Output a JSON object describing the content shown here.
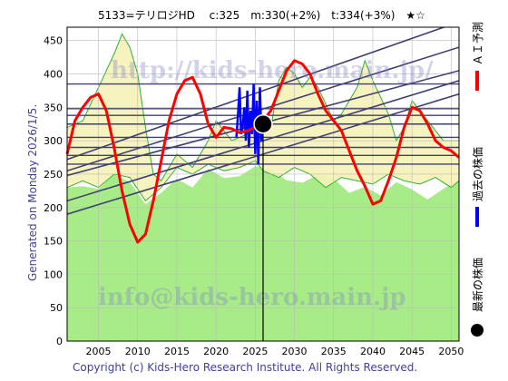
{
  "chart_data": {
    "type": "line",
    "title": "5133=テリロジHD　 c:325　m:330(+2%)　t:334(+3%)　★☆",
    "left_label": "Generated on Monday 2026/1/5.",
    "footer": "Copyright (c) Kids-Hero Research Institute. All Rights Reserved.",
    "watermark_top": "http://kids-hero.main.jp/",
    "watermark_bottom": "info@kids-hero.main.jp",
    "xlim": [
      2001,
      2051
    ],
    "ylim": [
      0,
      470
    ],
    "x_ticks": [
      2005,
      2010,
      2015,
      2020,
      2025,
      2030,
      2035,
      2040,
      2045,
      2050
    ],
    "y_ticks": [
      0,
      50,
      100,
      150,
      200,
      250,
      300,
      350,
      400,
      450
    ],
    "legend": [
      {
        "name": "ＡＩ予測",
        "color": "#ff0000"
      },
      {
        "name": "過去の株価",
        "color": "#0000ff"
      },
      {
        "name": "最新の株価",
        "color": "#000000"
      }
    ],
    "latest_point": {
      "x": 2026.0,
      "y": 325
    },
    "vline_x": 2026.0,
    "horizontal_levels": [
      265,
      278,
      290,
      305,
      325,
      338,
      348,
      385
    ],
    "trend_lines": [
      {
        "x": [
          2001,
          2051
        ],
        "y": [
          190,
          370
        ]
      },
      {
        "x": [
          2001,
          2051
        ],
        "y": [
          210,
          390
        ]
      },
      {
        "x": [
          2001,
          2051
        ],
        "y": [
          248,
          405
        ]
      },
      {
        "x": [
          2001,
          2051
        ],
        "y": [
          255,
          440
        ]
      },
      {
        "x": [
          2001,
          2051
        ],
        "y": [
          272,
          478
        ]
      }
    ],
    "ai_forecast": {
      "x": [
        2001,
        2002,
        2003,
        2004,
        2005,
        2006,
        2007,
        2008,
        2009,
        2010,
        2011,
        2012,
        2013,
        2014,
        2015,
        2016,
        2017,
        2018,
        2019,
        2020,
        2021,
        2022,
        2023,
        2024,
        2025,
        2026,
        2027,
        2028,
        2029,
        2030,
        2031,
        2032,
        2033,
        2034,
        2035,
        2036,
        2037,
        2038,
        2039,
        2040,
        2041,
        2042,
        2043,
        2044,
        2045,
        2046,
        2047,
        2048,
        2049,
        2050,
        2051
      ],
      "y": [
        280,
        330,
        350,
        365,
        370,
        345,
        290,
        225,
        175,
        148,
        160,
        210,
        270,
        330,
        370,
        390,
        395,
        370,
        325,
        305,
        320,
        318,
        312,
        315,
        320,
        330,
        345,
        375,
        405,
        420,
        415,
        400,
        370,
        345,
        330,
        315,
        285,
        255,
        232,
        205,
        210,
        240,
        275,
        320,
        350,
        345,
        325,
        300,
        290,
        285,
        275
      ]
    },
    "past_price": {
      "x": [
        2022.6,
        2022.8,
        2023.0,
        2023.2,
        2023.4,
        2023.6,
        2023.8,
        2024.0,
        2024.2,
        2024.4,
        2024.6,
        2024.8,
        2025.0,
        2025.2,
        2025.4,
        2025.6,
        2025.8,
        2026.0
      ],
      "y": [
        305,
        340,
        380,
        310,
        320,
        350,
        300,
        375,
        290,
        345,
        310,
        385,
        280,
        360,
        265,
        380,
        300,
        325
      ]
    },
    "band_upper": {
      "x": [
        2001,
        2003,
        2005,
        2007,
        2008,
        2009,
        2010,
        2011,
        2012,
        2013,
        2015,
        2017,
        2019,
        2020,
        2022,
        2024,
        2025,
        2026,
        2027,
        2028,
        2029,
        2030,
        2031,
        2032,
        2033,
        2035,
        2036,
        2038,
        2039,
        2040,
        2042,
        2043,
        2044,
        2045,
        2047,
        2049,
        2051
      ],
      "y": [
        320,
        330,
        380,
        430,
        460,
        440,
        400,
        320,
        250,
        240,
        280,
        260,
        300,
        330,
        300,
        310,
        340,
        330,
        320,
        390,
        410,
        400,
        380,
        395,
        380,
        330,
        340,
        380,
        420,
        390,
        340,
        300,
        320,
        360,
        330,
        300,
        300
      ]
    },
    "band_lower": {
      "x": [
        2001,
        2003,
        2005,
        2007,
        2009,
        2011,
        2013,
        2015,
        2017,
        2019,
        2021,
        2023,
        2025,
        2026,
        2028,
        2030,
        2032,
        2034,
        2036,
        2038,
        2040,
        2042,
        2044,
        2046,
        2048,
        2050,
        2051
      ],
      "y": [
        230,
        240,
        230,
        250,
        245,
        210,
        230,
        260,
        250,
        265,
        255,
        260,
        270,
        255,
        245,
        260,
        250,
        230,
        245,
        240,
        235,
        250,
        240,
        235,
        245,
        230,
        240
      ]
    },
    "green_area": {
      "x": [
        2001,
        2003,
        2005,
        2007,
        2009,
        2011,
        2013,
        2015,
        2017,
        2019,
        2021,
        2023,
        2025,
        2027,
        2029,
        2031,
        2033,
        2035,
        2037,
        2039,
        2041,
        2043,
        2045,
        2047,
        2049,
        2051
      ],
      "y": [
        230,
        232,
        228,
        250,
        238,
        205,
        222,
        243,
        230,
        258,
        244,
        247,
        262,
        256,
        241,
        237,
        249,
        243,
        222,
        231,
        218,
        238,
        227,
        212,
        228,
        242
      ]
    }
  }
}
